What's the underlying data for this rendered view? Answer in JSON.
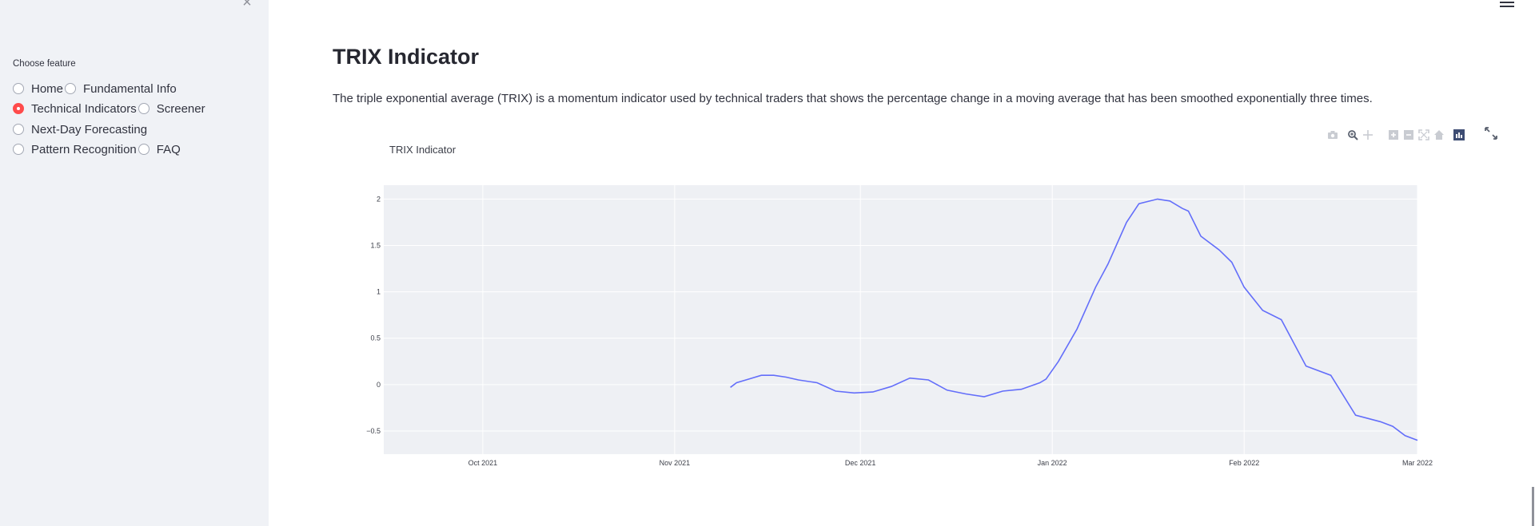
{
  "sidebar": {
    "radio_group_label": "Choose feature",
    "options": [
      {
        "label": "Home",
        "selected": false
      },
      {
        "label": "Fundamental Info",
        "selected": false
      },
      {
        "label": "Technical Indicators",
        "selected": true
      },
      {
        "label": "Screener",
        "selected": false
      },
      {
        "label": "Next-Day Forecasting",
        "selected": false
      },
      {
        "label": "Pattern Recognition",
        "selected": false
      },
      {
        "label": "FAQ",
        "selected": false
      }
    ]
  },
  "main": {
    "title": "TRIX Indicator",
    "description": "The triple exponential average (TRIX) is a momentum indicator used by technical traders that shows the percentage change in a moving average that has been smoothed exponentially three times."
  },
  "colors": {
    "accent": "#ff4b4b",
    "sidebar_bg": "#f0f2f6",
    "plot_bg": "#eef0f4",
    "line": "#636efa"
  },
  "modebar_icons": [
    "camera-icon",
    "zoom-icon",
    "pan-icon",
    "zoom-in-icon",
    "zoom-out-icon",
    "autoscale-icon",
    "reset-axes-icon",
    "plotly-logo-icon"
  ],
  "chart_data": {
    "type": "line",
    "title": "TRIX Indicator",
    "xlabel": "",
    "ylabel": "",
    "x_range": [
      "2021-09-15",
      "2022-03-01"
    ],
    "ylim": [
      -0.75,
      2.15
    ],
    "x_tick_labels": [
      "Oct 2021",
      "Nov 2021",
      "Dec 2021",
      "Jan 2022",
      "Feb 2022",
      "Mar 2022"
    ],
    "x_tick_dates": [
      "2021-10-01",
      "2021-11-01",
      "2021-12-01",
      "2022-01-01",
      "2022-02-01",
      "2022-03-01"
    ],
    "y_tick_labels": [
      "−0.5",
      "0",
      "0.5",
      "1",
      "1.5",
      "2"
    ],
    "y_ticks": [
      -0.5,
      0,
      0.5,
      1,
      1.5,
      2
    ],
    "grid": true,
    "legend": "none",
    "series": [
      {
        "x": [
          "2021-11-10",
          "2021-11-11",
          "2021-11-13",
          "2021-11-15",
          "2021-11-17",
          "2021-11-19",
          "2021-11-21",
          "2021-11-24",
          "2021-11-27",
          "2021-11-30",
          "2021-12-03",
          "2021-12-06",
          "2021-12-09",
          "2021-12-12",
          "2021-12-15",
          "2021-12-18",
          "2021-12-21",
          "2021-12-24",
          "2021-12-27",
          "2021-12-30",
          "2021-12-31",
          "2022-01-02",
          "2022-01-05",
          "2022-01-08",
          "2022-01-10",
          "2022-01-13",
          "2022-01-15",
          "2022-01-18",
          "2022-01-20",
          "2022-01-22",
          "2022-01-23",
          "2022-01-25",
          "2022-01-28",
          "2022-01-30",
          "2022-02-01",
          "2022-02-04",
          "2022-02-07",
          "2022-02-11",
          "2022-02-15",
          "2022-02-19",
          "2022-02-23",
          "2022-02-25",
          "2022-02-27",
          "2022-03-01"
        ],
        "y": [
          -0.03,
          0.02,
          0.06,
          0.1,
          0.1,
          0.08,
          0.05,
          0.02,
          -0.07,
          -0.09,
          -0.08,
          -0.02,
          0.07,
          0.05,
          -0.06,
          -0.1,
          -0.13,
          -0.07,
          -0.05,
          0.02,
          0.06,
          0.25,
          0.6,
          1.05,
          1.3,
          1.75,
          1.95,
          2.0,
          1.98,
          1.9,
          1.87,
          1.6,
          1.45,
          1.32,
          1.05,
          0.8,
          0.7,
          0.2,
          0.1,
          -0.33,
          -0.4,
          -0.45,
          -0.55,
          -0.6
        ]
      }
    ]
  }
}
